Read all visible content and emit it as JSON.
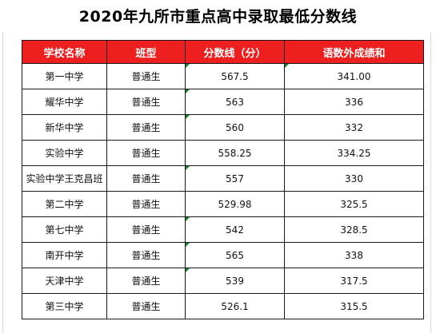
{
  "title": "2020年九所市重点高中录取最低分数线",
  "table": {
    "headers": [
      "学校名称",
      "班型",
      "分数线（分）",
      "语数外成绩和"
    ],
    "rows": [
      [
        "第一中学",
        "普通生",
        "567.5",
        "341.00"
      ],
      [
        "耀华中学",
        "普通生",
        "563",
        "336"
      ],
      [
        "新华中学",
        "普通生",
        "560",
        "332"
      ],
      [
        "实验中学",
        "普通生",
        "558.25",
        "334.25"
      ],
      [
        "实验中学王克昌班",
        "普通生",
        "557",
        "330"
      ],
      [
        "第二中学",
        "普通生",
        "529.98",
        "325.5"
      ],
      [
        "第七中学",
        "普通生",
        "542",
        "328.5"
      ],
      [
        "南开中学",
        "普通生",
        "565",
        "338"
      ],
      [
        "天津中学",
        "普通生",
        "539",
        "317.5"
      ],
      [
        "第三中学",
        "普通生",
        "526.1",
        "315.5"
      ]
    ]
  },
  "colors": {
    "header_bg": "#ee1f1f",
    "header_text": "#ffffff",
    "border": "#1a1a1a",
    "cell_marker": "#1a7f2e"
  }
}
